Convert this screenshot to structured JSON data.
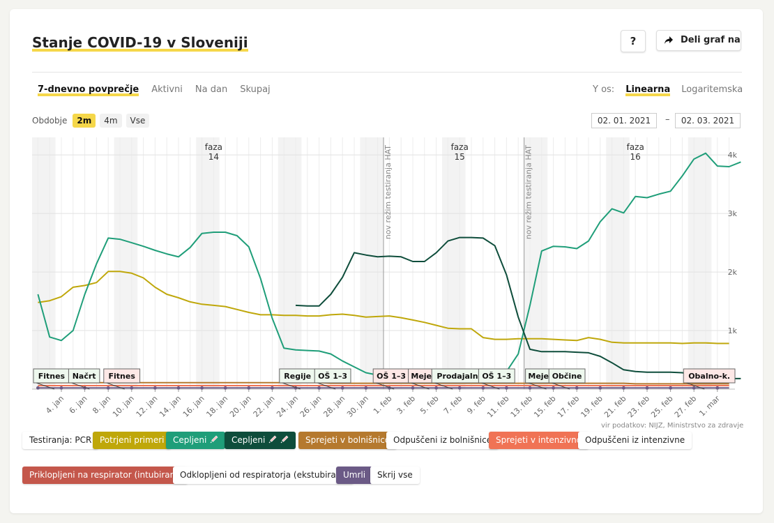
{
  "header": {
    "title": "Stanje COVID-19 v Sloveniji",
    "help_label": "?",
    "share_label": "Deli graf na"
  },
  "tabs": [
    {
      "label": "7-dnevno povprečje",
      "active": true
    },
    {
      "label": "Aktivni",
      "active": false
    },
    {
      "label": "Na dan",
      "active": false
    },
    {
      "label": "Skupaj",
      "active": false
    }
  ],
  "yaxis": {
    "label": "Y os:",
    "options": [
      {
        "label": "Linearna",
        "active": true
      },
      {
        "label": "Logaritemska",
        "active": false
      }
    ]
  },
  "period": {
    "label": "Obdobje",
    "options": [
      {
        "label": "2m",
        "active": true
      },
      {
        "label": "4m",
        "active": false
      },
      {
        "label": "Vse",
        "active": false
      }
    ],
    "from": "02. 01. 2021",
    "separator": "–",
    "to": "02. 03. 2021"
  },
  "source": "vir podatkov: NIJZ, Ministrstvo za zdravje",
  "legend": [
    {
      "label": "Testiranja: PCR",
      "color": "#ffffff",
      "text": "#222222"
    },
    {
      "label": "Potrjeni primeri",
      "color": "#bfa70a",
      "text": "#ffffff"
    },
    {
      "label": "Cepljeni",
      "color": "#1f9e79",
      "text": "#ffffff",
      "icon": "syringe-icon",
      "icon_count": 1
    },
    {
      "label": "Cepljeni",
      "color": "#0e4d3b",
      "text": "#ffffff",
      "icon": "syringe-icon",
      "icon_count": 2
    },
    {
      "label": "Sprejeti v bolnišnico",
      "color": "#b5792e",
      "text": "#ffffff"
    },
    {
      "label": "Odpuščeni iz bolnišnice",
      "color": "#ffffff",
      "text": "#222222"
    },
    {
      "label": "Sprejeti v intenzivno",
      "color": "#f07355",
      "text": "#ffffff"
    },
    {
      "label": "Odpuščeni iz intenzivne",
      "color": "#ffffff",
      "text": "#222222"
    },
    {
      "label": "Priklopljeni na respirator (intubirani)",
      "color": "#c4574b",
      "text": "#ffffff"
    },
    {
      "label": "Odklopljeni od respiratorja (ekstubirani)",
      "color": "#ffffff",
      "text": "#222222"
    },
    {
      "label": "Umrli",
      "color": "#6b5a86",
      "text": "#ffffff"
    },
    {
      "label": "Skrij vse",
      "color": "#ffffff",
      "text": "#222222"
    }
  ],
  "chart_data": {
    "type": "line",
    "x_start": "2021-01-02",
    "x_end": "2021-03-02",
    "ylim": [
      0,
      4300
    ],
    "yticks": [
      1000,
      2000,
      3000,
      4000
    ],
    "ytick_labels": [
      "1k",
      "2k",
      "3k",
      "4k"
    ],
    "grid": true,
    "xtick_dates": [
      "2021-01-04",
      "2021-01-06",
      "2021-01-08",
      "2021-01-10",
      "2021-01-12",
      "2021-01-14",
      "2021-01-16",
      "2021-01-18",
      "2021-01-20",
      "2021-01-22",
      "2021-01-24",
      "2021-01-26",
      "2021-01-28",
      "2021-01-30",
      "2021-02-01",
      "2021-02-03",
      "2021-02-05",
      "2021-02-07",
      "2021-02-09",
      "2021-02-11",
      "2021-02-13",
      "2021-02-15",
      "2021-02-17",
      "2021-02-19",
      "2021-02-21",
      "2021-02-23",
      "2021-02-25",
      "2021-02-27",
      "2021-03-01"
    ],
    "xtick_labels": [
      "4. jan",
      "6. jan",
      "8. jan",
      "10. jan",
      "12. jan",
      "14. jan",
      "16. jan",
      "18. jan",
      "20. jan",
      "22. jan",
      "24. jan",
      "26. jan",
      "28. jan",
      "30. jan",
      "1. feb",
      "3. feb",
      "5. feb",
      "7. feb",
      "9. feb",
      "11. feb",
      "13. feb",
      "15. feb",
      "17. feb",
      "19. feb",
      "21. feb",
      "23. feb",
      "25. feb",
      "27. feb",
      "1. mar"
    ],
    "weekend_shading": [
      [
        "2021-01-02",
        "2021-01-03"
      ],
      [
        "2021-01-09",
        "2021-01-10"
      ],
      [
        "2021-01-16",
        "2021-01-17"
      ],
      [
        "2021-01-23",
        "2021-01-24"
      ],
      [
        "2021-01-30",
        "2021-01-31"
      ],
      [
        "2021-02-06",
        "2021-02-07"
      ],
      [
        "2021-02-13",
        "2021-02-14"
      ],
      [
        "2021-02-20",
        "2021-02-21"
      ],
      [
        "2021-02-27",
        "2021-02-28"
      ]
    ],
    "phases": [
      {
        "label": "faza",
        "number": "14",
        "date": "2021-01-17"
      },
      {
        "label": "faza",
        "number": "15",
        "date": "2021-02-07"
      },
      {
        "label": "faza",
        "number": "16",
        "date": "2021-02-22"
      }
    ],
    "markers": [
      {
        "label": "nov režim testiranja HAT",
        "date": "2021-02-01"
      },
      {
        "label": "nov režim testiranja HAT",
        "date": "2021-02-13"
      }
    ],
    "events": [
      {
        "label": "Fitnes",
        "date": "2021-01-02",
        "style": "green"
      },
      {
        "label": "Načrt",
        "date": "2021-01-05",
        "style": "green"
      },
      {
        "label": "Fitnes",
        "date": "2021-01-08",
        "style": "red"
      },
      {
        "label": "Regije",
        "date": "2021-01-23",
        "style": "green"
      },
      {
        "label": "OŠ 1–3",
        "date": "2021-01-26",
        "style": "green"
      },
      {
        "label": "OŠ 1–3",
        "date": "2021-01-31",
        "style": "red"
      },
      {
        "label": "Meje",
        "date": "2021-02-03",
        "style": "red"
      },
      {
        "label": "Prodajalne",
        "date": "2021-02-05",
        "style": "green"
      },
      {
        "label": "OŠ 1–3",
        "date": "2021-02-09",
        "style": "green"
      },
      {
        "label": "Meje",
        "date": "2021-02-13",
        "style": "green"
      },
      {
        "label": "Občine",
        "date": "2021-02-15",
        "style": "green"
      },
      {
        "label": "Obalno-k.",
        "date": "2021-02-28",
        "style": "red"
      }
    ],
    "series": [
      {
        "name": "Potrjeni primeri",
        "color": "#bfa70a",
        "start": "2021-01-02",
        "values": [
          1480,
          1510,
          1580,
          1740,
          1770,
          1820,
          2010,
          2010,
          1980,
          1900,
          1740,
          1620,
          1560,
          1490,
          1450,
          1430,
          1410,
          1360,
          1310,
          1270,
          1270,
          1260,
          1260,
          1250,
          1250,
          1270,
          1280,
          1260,
          1230,
          1240,
          1250,
          1220,
          1180,
          1140,
          1090,
          1040,
          1030,
          1030,
          880,
          850,
          850,
          860,
          860,
          860,
          850,
          840,
          830,
          880,
          850,
          800,
          790,
          790,
          790,
          790,
          790,
          780,
          790,
          790,
          780,
          780
        ]
      },
      {
        "name": "Cepljeni (1 odmerek)",
        "color": "#1f9e79",
        "start": "2021-01-02",
        "values": [
          1620,
          890,
          830,
          1000,
          1620,
          2140,
          2580,
          2560,
          2500,
          2440,
          2370,
          2310,
          2260,
          2420,
          2660,
          2680,
          2680,
          2620,
          2430,
          1890,
          1210,
          700,
          670,
          660,
          650,
          600,
          480,
          380,
          280,
          240,
          230,
          230,
          220,
          220,
          220,
          230,
          230,
          240,
          250,
          270,
          300,
          600,
          1430,
          2360,
          2440,
          2430,
          2400,
          2530,
          2860,
          3080,
          3010,
          3290,
          3270,
          3330,
          3380,
          3640,
          3930,
          4030,
          3810,
          3800,
          3880
        ]
      },
      {
        "name": "Cepljeni (2 odmerka)",
        "color": "#0e4d3b",
        "start": "2021-01-24",
        "values": [
          1430,
          1420,
          1420,
          1620,
          1910,
          2330,
          2290,
          2260,
          2270,
          2260,
          2180,
          2180,
          2330,
          2530,
          2590,
          2590,
          2580,
          2450,
          1950,
          1230,
          680,
          640,
          640,
          640,
          630,
          620,
          560,
          450,
          330,
          300,
          290,
          290,
          290,
          280,
          250,
          200,
          190,
          180,
          180
        ]
      },
      {
        "name": "Sprejeti v bolnišnico",
        "color": "#b5792e",
        "start": "2021-01-02",
        "values": [
          110,
          110,
          110,
          110,
          110,
          110,
          110,
          110,
          110,
          110,
          110,
          110,
          110,
          110,
          110,
          110,
          110,
          110,
          110,
          110,
          110,
          110,
          110,
          110,
          110,
          100,
          100,
          100,
          100,
          100,
          100,
          100,
          100,
          100,
          100,
          100,
          100,
          100,
          100,
          100,
          100,
          100,
          100,
          100,
          100,
          100,
          100,
          100,
          100,
          100,
          100,
          90,
          90,
          90,
          90,
          90,
          90,
          90,
          90,
          90
        ]
      },
      {
        "name": "Sprejeti v intenzivno",
        "color": "#f07355",
        "start": "2021-01-02",
        "values": [
          60,
          60,
          60,
          60,
          60,
          60,
          60,
          60,
          60,
          60,
          60,
          60,
          60,
          60,
          60,
          60,
          60,
          60,
          60,
          60,
          60,
          60,
          60,
          60,
          60,
          60,
          60,
          60,
          60,
          60,
          60,
          60,
          60,
          60,
          60,
          60,
          60,
          60,
          60,
          60,
          60,
          60,
          60,
          60,
          60,
          60,
          60,
          60,
          60,
          60,
          60,
          60,
          60,
          60,
          60,
          60,
          60,
          60,
          60,
          60
        ]
      },
      {
        "name": "Umrli",
        "color": "#6b5a86",
        "start": "2021-01-02",
        "values": [
          20,
          20,
          20,
          20,
          20,
          20,
          20,
          20,
          20,
          20,
          20,
          20,
          20,
          20,
          20,
          20,
          20,
          20,
          20,
          20,
          20,
          20,
          20,
          20,
          20,
          20,
          20,
          20,
          20,
          20,
          20,
          20,
          20,
          20,
          20,
          20,
          20,
          20,
          20,
          20,
          20,
          20,
          20,
          20,
          20,
          20,
          20,
          20,
          20,
          20,
          20,
          20,
          20,
          20,
          20,
          20,
          20,
          20,
          20,
          20
        ]
      }
    ]
  }
}
